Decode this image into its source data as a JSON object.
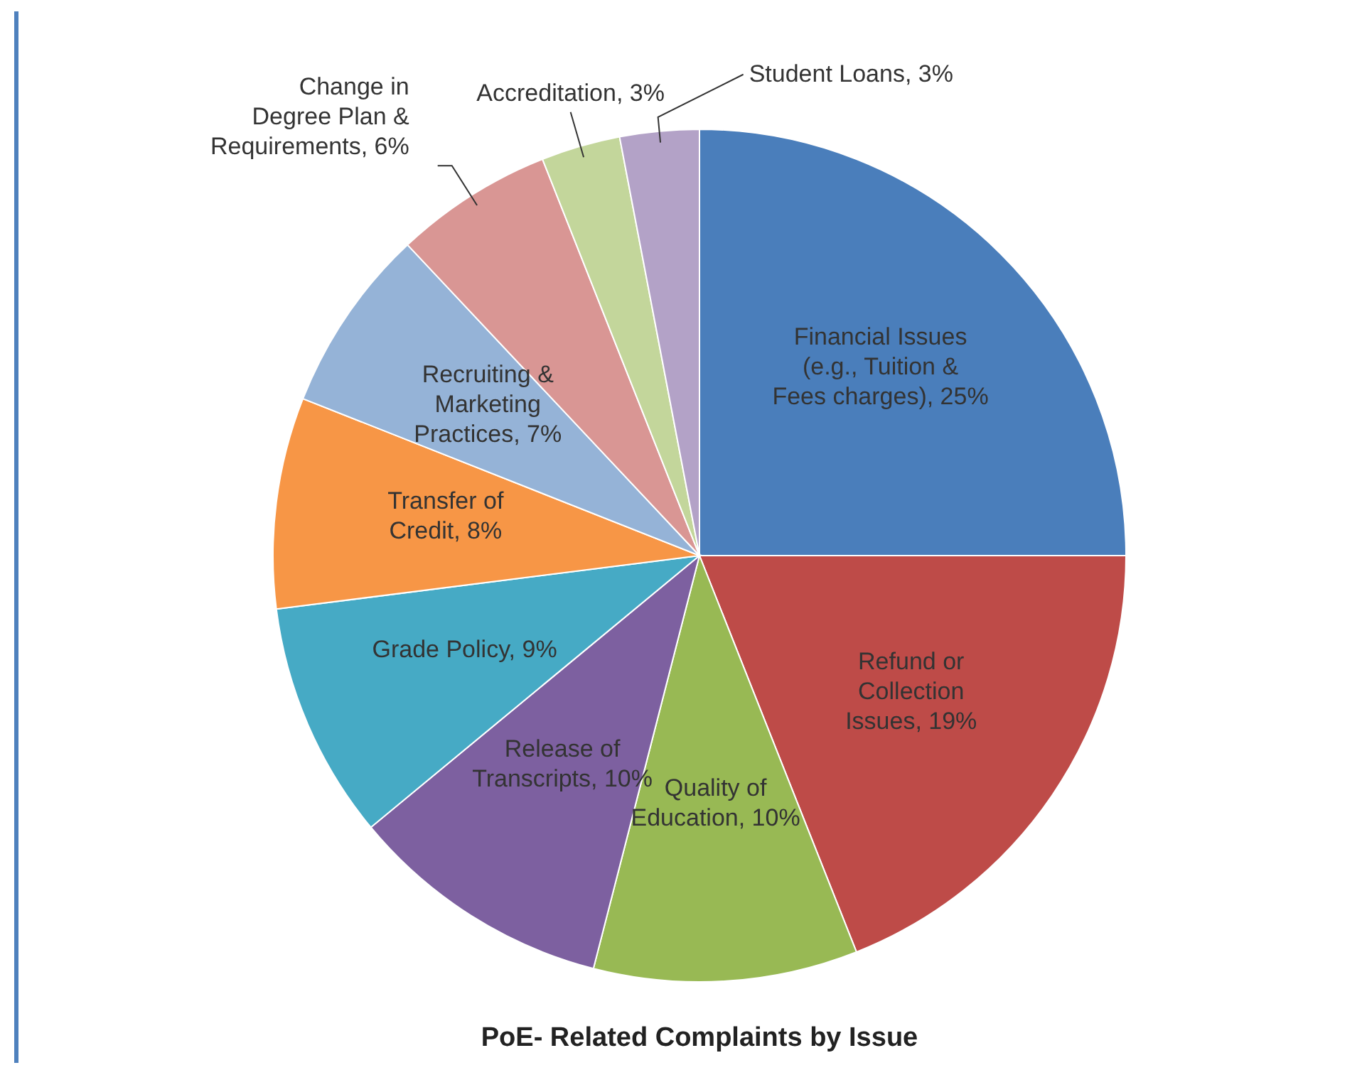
{
  "chart_data": {
    "type": "pie",
    "title": "PoE- Related Complaints by Issue",
    "categories": [
      "Financial Issues (e.g., Tuition & Fees charges)",
      "Refund or Collection Issues",
      "Quality of Education",
      "Release of Transcripts",
      "Grade Policy",
      "Transfer of Credit",
      "Recruiting & Marketing Practices",
      "Change in Degree Plan & Requirements",
      "Accreditation",
      "Student Loans"
    ],
    "values": [
      25,
      19,
      10,
      10,
      9,
      8,
      7,
      6,
      3,
      3
    ],
    "value_labels": [
      "25%",
      "19%",
      "10%",
      "10%",
      "9%",
      "8%",
      "7%",
      "6%",
      "3%",
      "3%"
    ],
    "colors": [
      "#4a7ebb",
      "#be4b48",
      "#98b954",
      "#7d60a0",
      "#46aac5",
      "#f79646",
      "#95b3d7",
      "#d99694",
      "#c3d69b",
      "#b3a2c7"
    ]
  }
}
